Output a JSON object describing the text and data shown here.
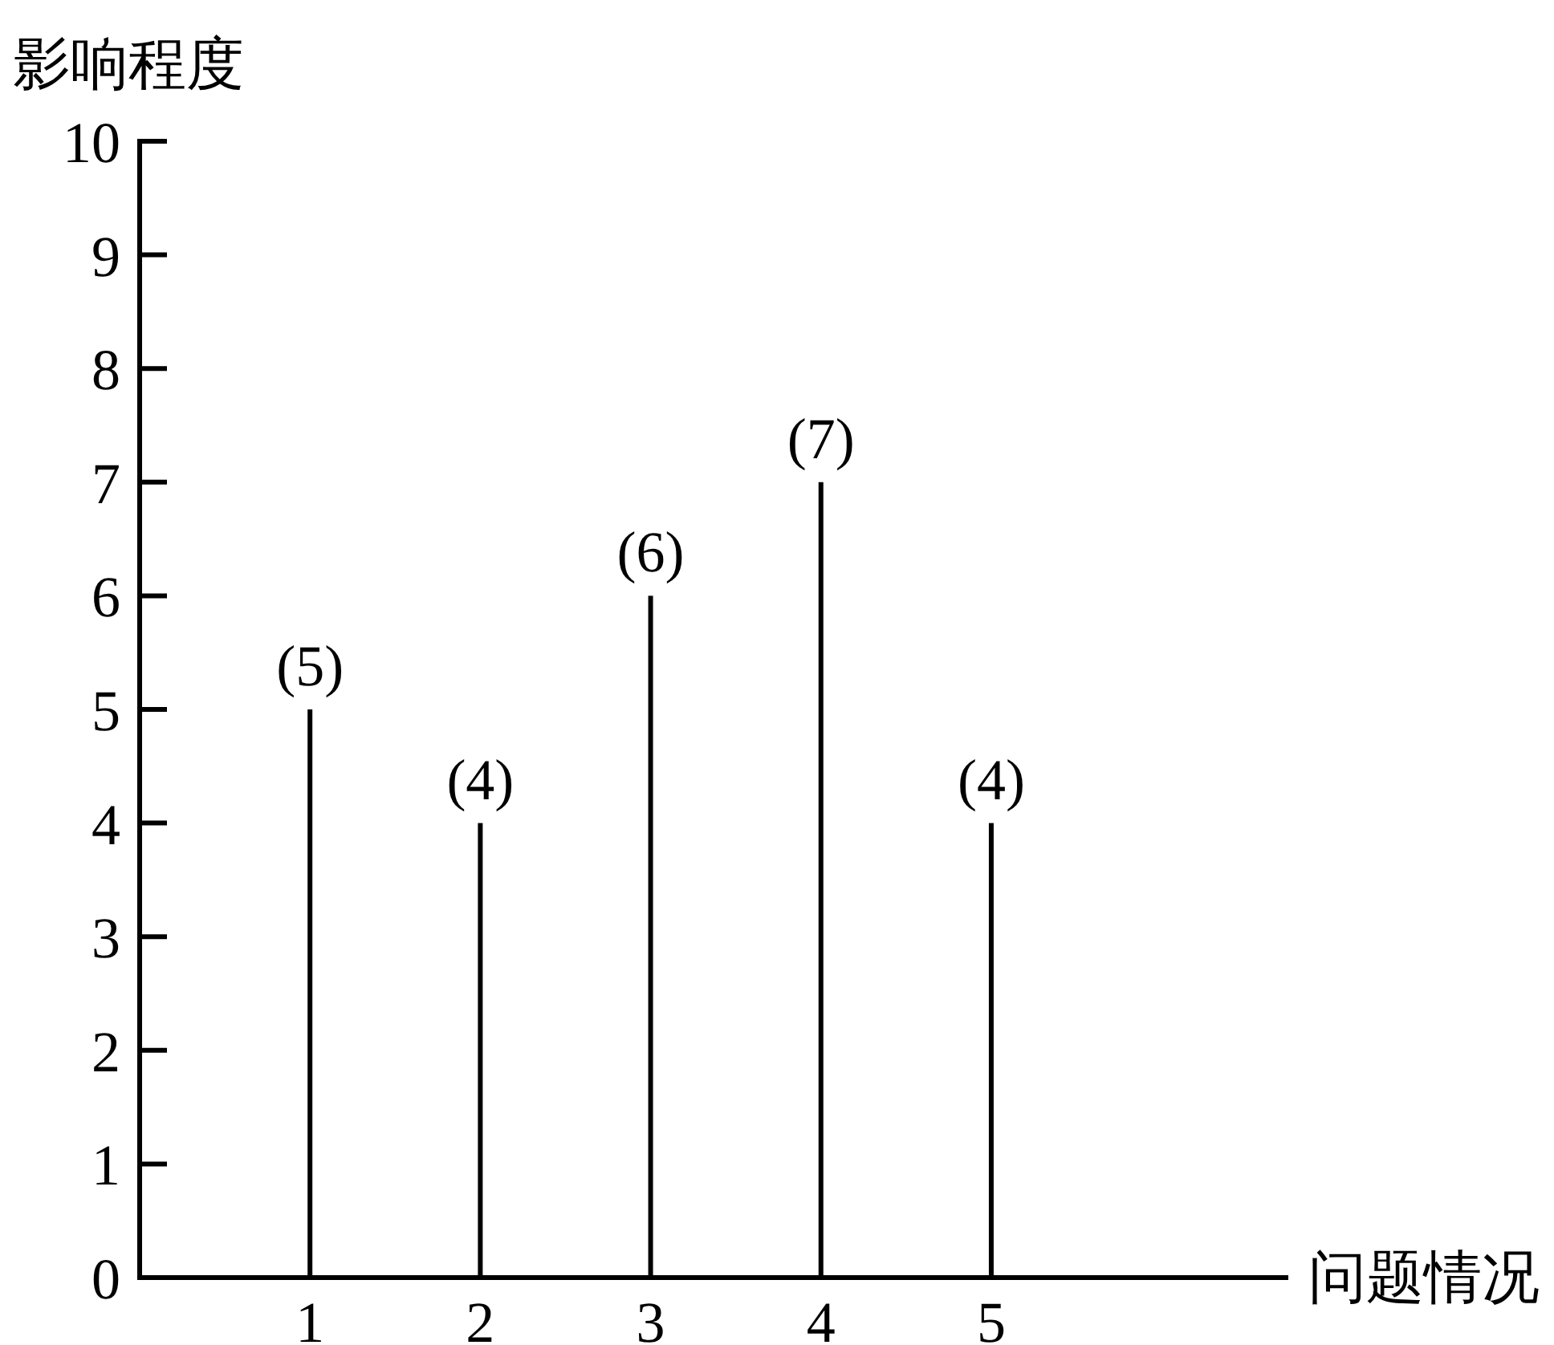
{
  "chart_data": {
    "type": "bar",
    "xlabel": "问题情况",
    "ylabel": "影响程度",
    "categories": [
      "1",
      "2",
      "3",
      "4",
      "5"
    ],
    "values": [
      5,
      4,
      6,
      7,
      4
    ],
    "value_labels": [
      "(5)",
      "(4)",
      "(6)",
      "(7)",
      "(4)"
    ],
    "color": "#000000",
    "ylim": [
      0,
      10
    ],
    "yticks": [
      0,
      1,
      2,
      3,
      4,
      5,
      6,
      7,
      8,
      9,
      10
    ]
  }
}
